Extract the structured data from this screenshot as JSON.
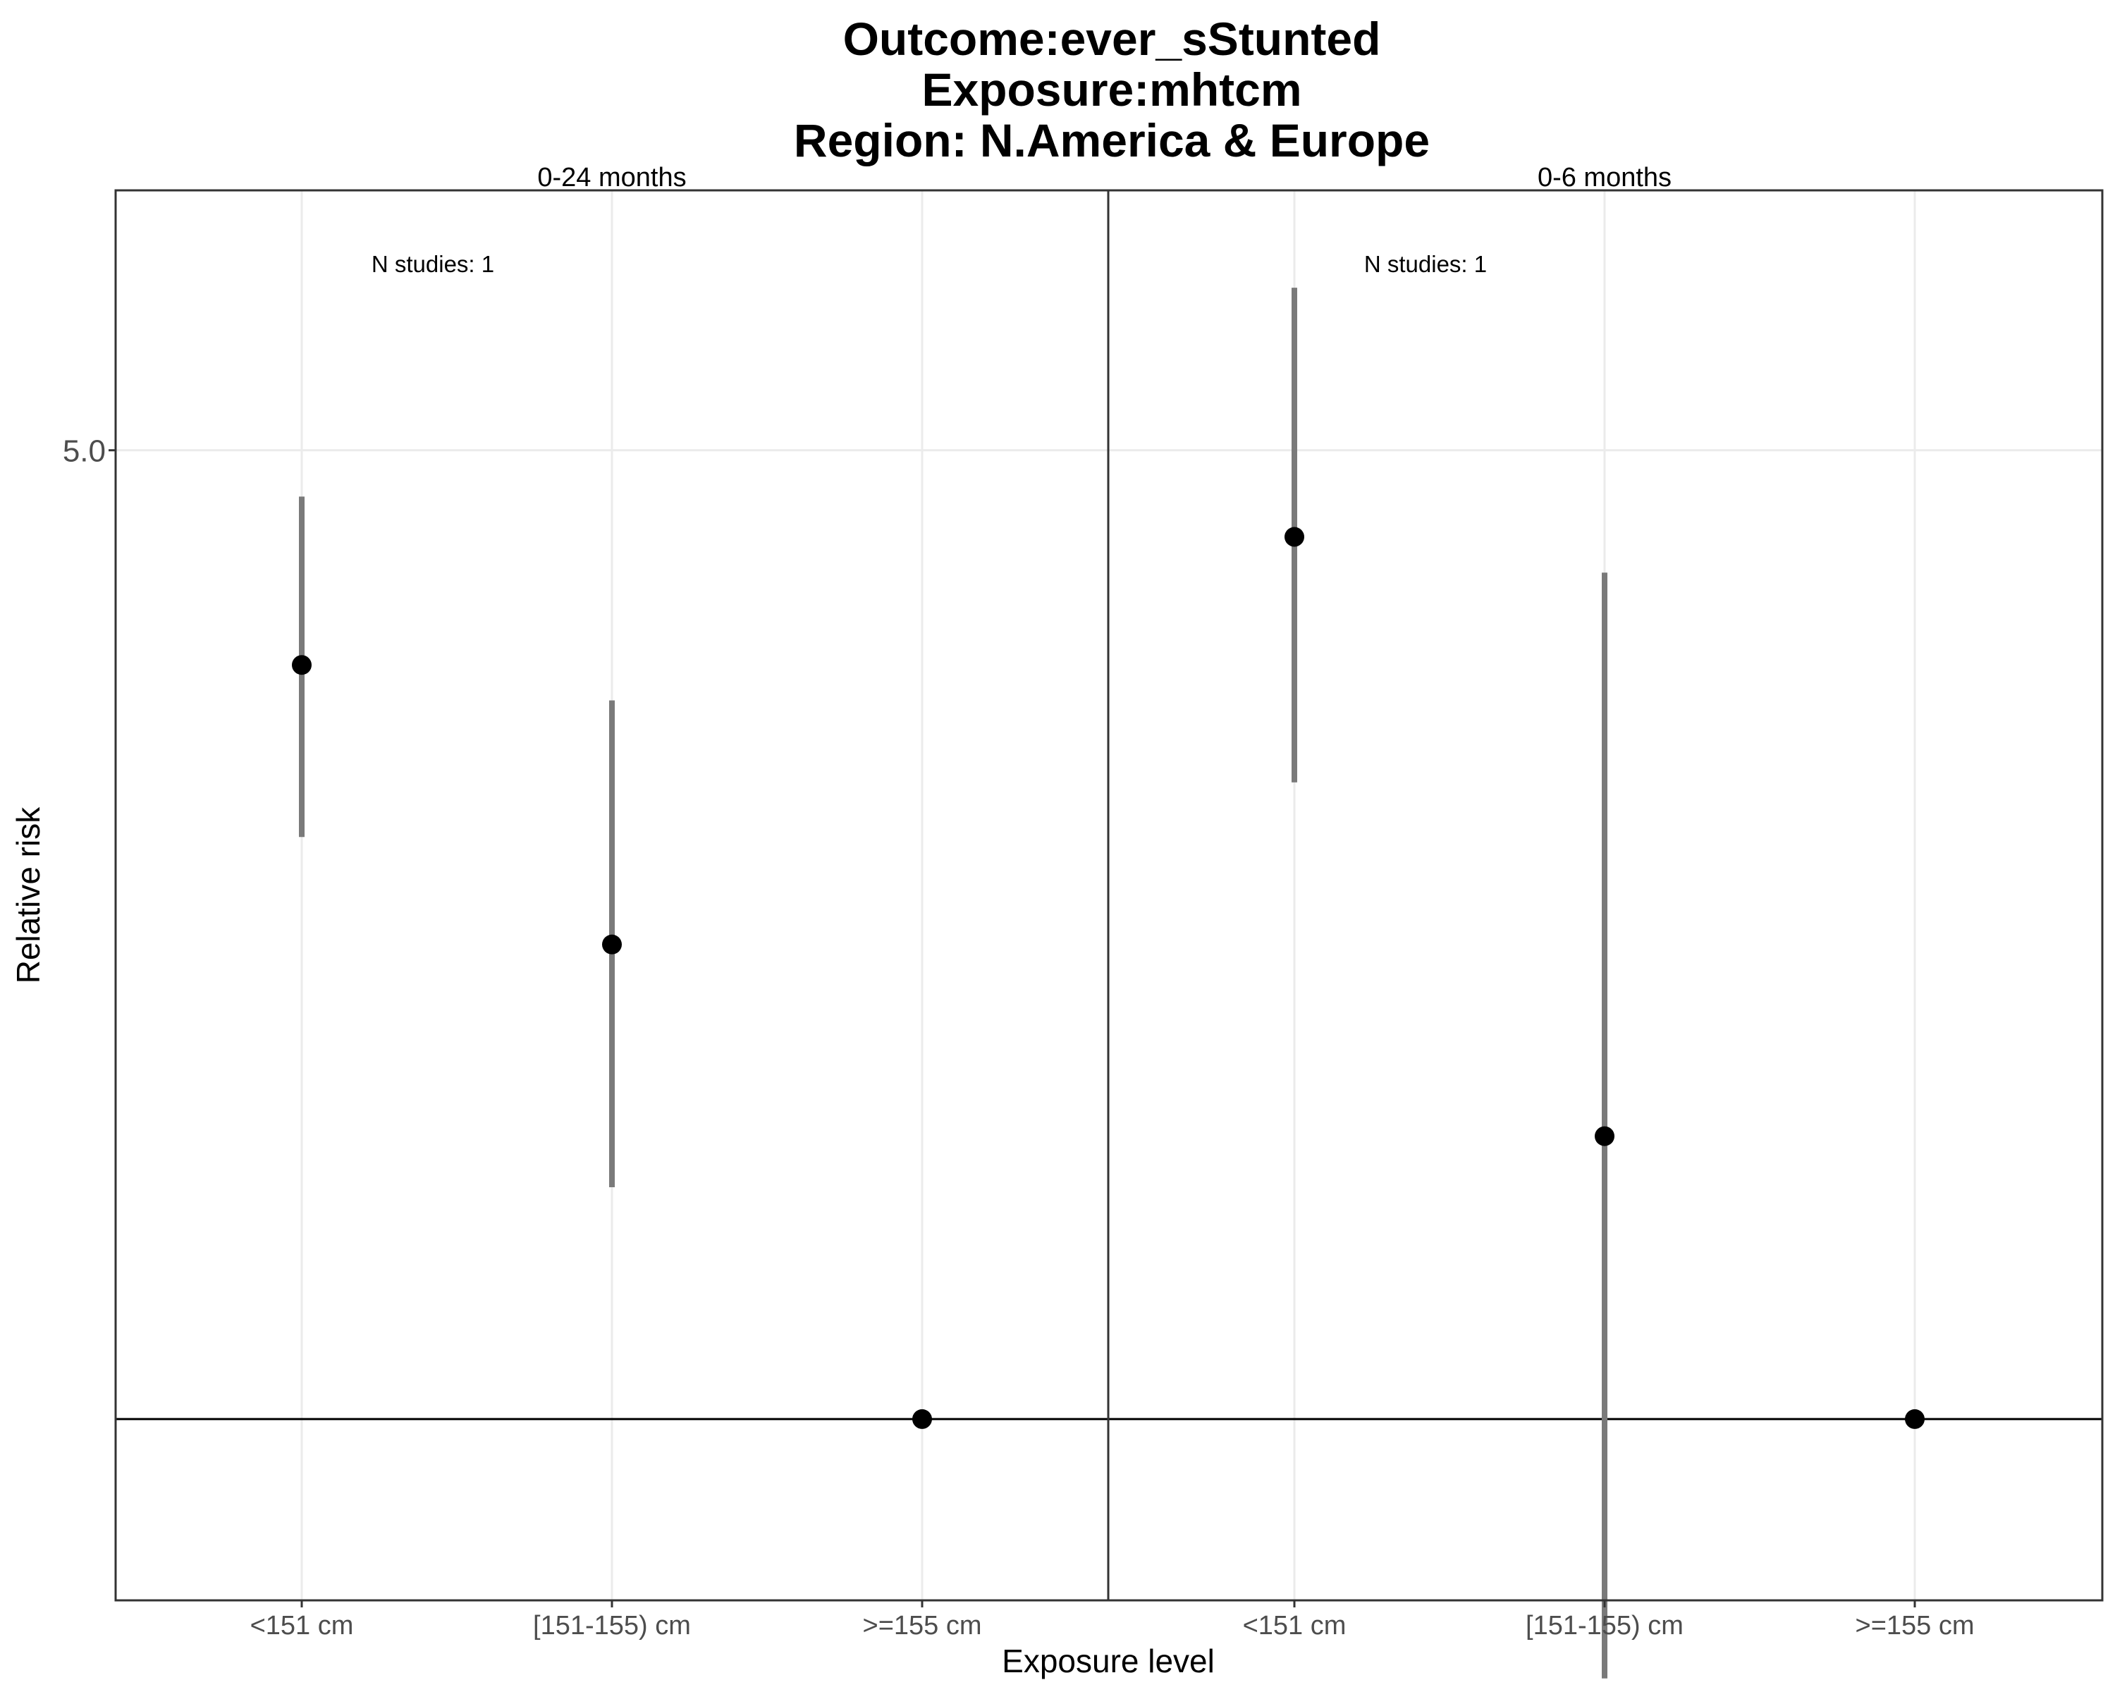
{
  "chart_data": {
    "type": "scatter",
    "title_lines": [
      "Outcome:ever_sStunted",
      "Exposure:mhtcm",
      "Region: N.America & Europe"
    ],
    "xlabel": "Exposure level",
    "ylabel": "Relative risk",
    "categories": [
      "<151 cm",
      "[151-155) cm",
      ">=155 cm"
    ],
    "y_scale": "log",
    "ylim": [
      0.74,
      7.7
    ],
    "y_ticks": [
      {
        "value": 5.0,
        "label": "5.0"
      }
    ],
    "reference_line": 1,
    "grid": true,
    "error_bar_color": "#7a7a7a",
    "point_color": "#000000",
    "panels": [
      {
        "label": "0-24 months",
        "annotation": "N studies: 1",
        "points": [
          {
            "category": "<151 cm",
            "estimate": 3.5,
            "ci_lower": 2.63,
            "ci_upper": 4.63
          },
          {
            "category": "[151-155) cm",
            "estimate": 2.2,
            "ci_lower": 1.47,
            "ci_upper": 3.3
          },
          {
            "category": ">=155 cm",
            "estimate": 1.0
          }
        ]
      },
      {
        "label": "0-6 months",
        "annotation": "N studies: 1",
        "points": [
          {
            "category": "<151 cm",
            "estimate": 4.33,
            "ci_lower": 2.88,
            "ci_upper": 6.55
          },
          {
            "category": "[151-155) cm",
            "estimate": 1.6,
            "ci_lower": 0.65,
            "ci_upper": 4.08
          },
          {
            "category": ">=155 cm",
            "estimate": 1.0
          }
        ]
      }
    ]
  }
}
